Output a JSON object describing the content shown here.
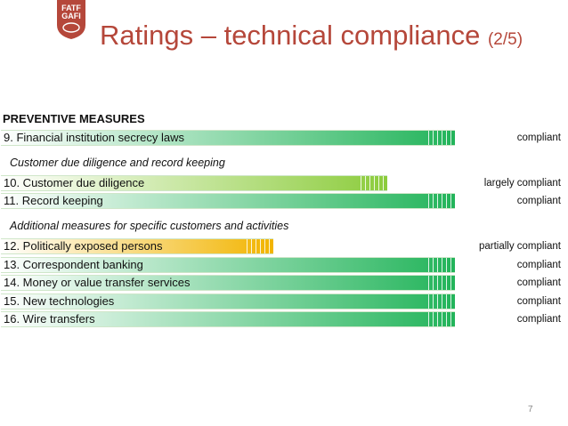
{
  "logo": {
    "line1": "FATF",
    "line2": "GAFI"
  },
  "title": {
    "main": "Ratings – technical compliance",
    "page": "(2/5)"
  },
  "section": "PREVENTIVE MEASURES",
  "subheads": [
    "Customer due diligence and record keeping",
    "Additional measures for specific customers and activities"
  ],
  "rows": [
    {
      "label": "9. Financial institution secrecy laws",
      "rating": "compliant",
      "level": 1.0
    },
    {
      "label": "10. Customer due diligence",
      "rating": "largely compliant",
      "level": 0.85
    },
    {
      "label": "11. Record keeping",
      "rating": "compliant",
      "level": 1.0
    },
    {
      "label": "12. Politically exposed persons",
      "rating": "partially compliant",
      "level": 0.6
    },
    {
      "label": "13. Correspondent banking",
      "rating": "compliant",
      "level": 1.0
    },
    {
      "label": "14. Money or value transfer services",
      "rating": "compliant",
      "level": 1.0
    },
    {
      "label": "15. New technologies",
      "rating": "compliant",
      "level": 1.0
    },
    {
      "label": "16. Wire transfers",
      "rating": "compliant",
      "level": 1.0
    }
  ],
  "page_number": "7",
  "colors": {
    "title": "#b5473a",
    "compliant": "#22b45a",
    "largely": "#8ccc3c",
    "partially": "#f2b400"
  }
}
